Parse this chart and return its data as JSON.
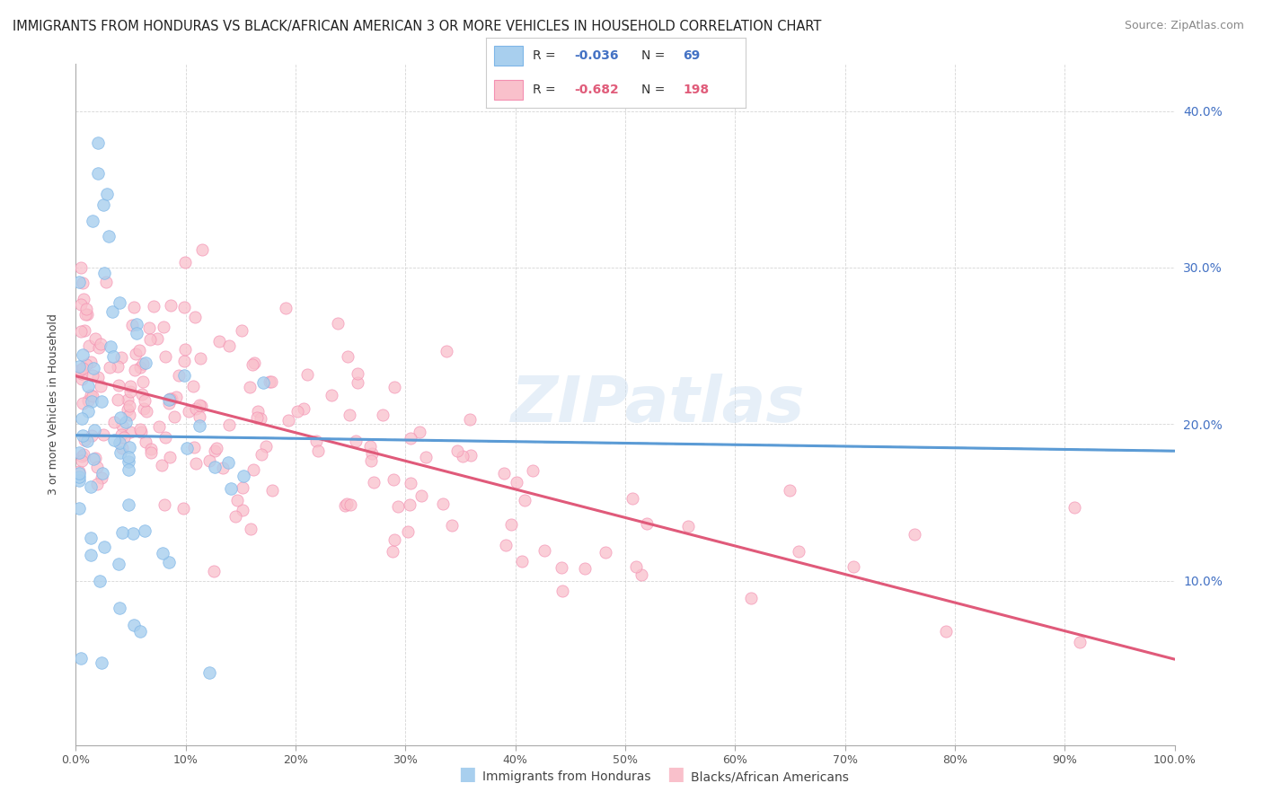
{
  "title": "IMMIGRANTS FROM HONDURAS VS BLACK/AFRICAN AMERICAN 3 OR MORE VEHICLES IN HOUSEHOLD CORRELATION CHART",
  "source": "Source: ZipAtlas.com",
  "ylabel": "3 or more Vehicles in Household",
  "xlim": [
    0.0,
    1.0
  ],
  "ylim": [
    -0.005,
    0.43
  ],
  "ytick_values": [
    0.1,
    0.2,
    0.3,
    0.4
  ],
  "ytick_labels": [
    "10.0%",
    "20.0%",
    "30.0%",
    "40.0%"
  ],
  "xtick_values": [
    0.0,
    0.1,
    0.2,
    0.3,
    0.4,
    0.5,
    0.6,
    0.7,
    0.8,
    0.9,
    1.0
  ],
  "xtick_labels": [
    "0.0%",
    "10%",
    "20%",
    "30%",
    "40%",
    "50%",
    "60%",
    "70%",
    "80%",
    "90%",
    "100.0%"
  ],
  "legend_r1": "-0.036",
  "legend_n1": "69",
  "legend_r2": "-0.682",
  "legend_n2": "198",
  "color_blue_fill": "#A8CFEE",
  "color_blue_edge": "#7EB6E8",
  "color_pink_fill": "#F9C0CB",
  "color_pink_edge": "#F48FB1",
  "color_blue_line": "#5B9BD5",
  "color_pink_line": "#E05A7A",
  "color_blue_text": "#4472C4",
  "color_pink_text": "#E05C7A",
  "color_grid": "#CCCCCC",
  "title_fontsize": 10.5,
  "source_fontsize": 9,
  "label_fontsize": 9,
  "tick_fontsize": 9,
  "background_color": "#FFFFFF",
  "watermark": "ZIPatlas"
}
